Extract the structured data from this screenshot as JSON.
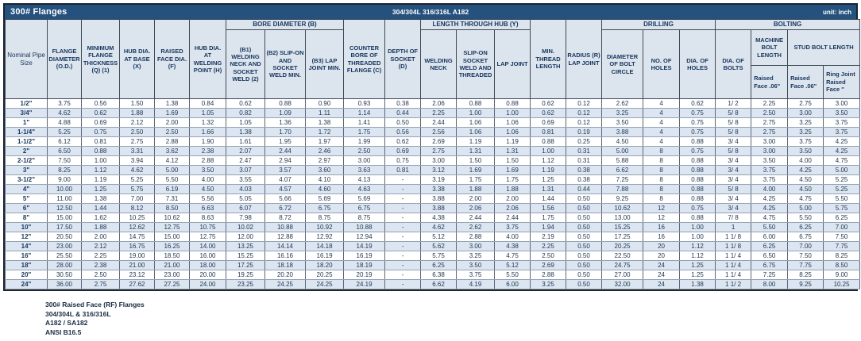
{
  "title_bar": {
    "title": "300# Flanges",
    "material": "304/304L 316/316L A182",
    "unit": "unit: inch"
  },
  "header": {
    "groups": {
      "bore": "BORE DIAMETER (B)",
      "length_hub": "LENGTH THROUGH HUB (Y)",
      "drilling": "DRILLING",
      "bolting": "BOLTING"
    },
    "columns": {
      "nps": "Nominal Pipe Size",
      "od": "FLANGE DIAMETER (O.D.)",
      "thickness": "MINIMUM FLANGE THICKNESS (Q) (1)",
      "hub_base": "HUB DIA. AT BASE (X)",
      "raised_face": "RAISED FACE DIA. (F)",
      "hub_weld": "HUB DIA. AT WELDING POINT (H)",
      "b1": "(B1) WELDING NECK AND SOCKET WELD (2)",
      "b2": "(B2) SLIP-ON AND SOCKET WELD MIN.",
      "b3": "(B3) LAP JOINT MIN.",
      "counter_bore": "COUNTER BORE OF THREADED FLANGE (C)",
      "socket_depth": "DEPTH OF SOCKET (D)",
      "welding_neck": "WELDING NECK",
      "slip_on": "SLIP-ON SOCKET WELD AND THREADED",
      "lap_joint": "LAP JOINT",
      "min_thread": "MIN. THREAD LENGTH",
      "radius": "RADIUS (R) LAP JOINT",
      "bolt_circle": "DIAMETER OF BOLT CIRCLE",
      "num_holes": "NO. OF HOLES",
      "dia_holes": "DIA. OF HOLES",
      "dia_bolts": "DIA. OF BOLTS",
      "machine_bolt": "MACHINE BOLT LENGTH",
      "stud_bolt": "STUD BOLT LENGTH",
      "raised_face_mb": "Raised Face .06\"",
      "raised_face_sb": "Raised Face .06\"",
      "ring_joint": "Ring Joint Raised Face \""
    }
  },
  "table": {
    "rows": [
      [
        "1/2\"",
        "3.75",
        "0.56",
        "1.50",
        "1.38",
        "0.84",
        "0.62",
        "0.88",
        "0.90",
        "0.93",
        "0.38",
        "2.06",
        "0.88",
        "0.88",
        "0.62",
        "0.12",
        "2.62",
        "4",
        "0.62",
        "1/ 2",
        "2.25",
        "2.75",
        "3.00"
      ],
      [
        "3/4\"",
        "4.62",
        "0.62",
        "1.88",
        "1.69",
        "1.05",
        "0.82",
        "1.09",
        "1.11",
        "1.14",
        "0.44",
        "2.25",
        "1.00",
        "1.00",
        "0.62",
        "0.12",
        "3.25",
        "4",
        "0.75",
        "5/ 8",
        "2.50",
        "3.00",
        "3.50"
      ],
      [
        "1\"",
        "4.88",
        "0.69",
        "2.12",
        "2.00",
        "1.32",
        "1.05",
        "1.36",
        "1.38",
        "1.41",
        "0.50",
        "2.44",
        "1.06",
        "1.06",
        "0.69",
        "0.12",
        "3.50",
        "4",
        "0.75",
        "5/ 8",
        "2.75",
        "3.25",
        "3.75"
      ],
      [
        "1-1/4\"",
        "5.25",
        "0.75",
        "2.50",
        "2.50",
        "1.66",
        "1.38",
        "1.70",
        "1.72",
        "1.75",
        "0.56",
        "2.56",
        "1.06",
        "1.06",
        "0.81",
        "0.19",
        "3.88",
        "4",
        "0.75",
        "5/ 8",
        "2.75",
        "3.25",
        "3.75"
      ],
      [
        "1-1/2\"",
        "6.12",
        "0.81",
        "2.75",
        "2.88",
        "1.90",
        "1.61",
        "1.95",
        "1.97",
        "1.99",
        "0.62",
        "2.69",
        "1.19",
        "1.19",
        "0.88",
        "0.25",
        "4.50",
        "4",
        "0.88",
        "3/ 4",
        "3.00",
        "3.75",
        "4.25"
      ],
      [
        "2\"",
        "6.50",
        "0.88",
        "3.31",
        "3.62",
        "2.38",
        "2.07",
        "2.44",
        "2.46",
        "2.50",
        "0.69",
        "2.75",
        "1.31",
        "1.31",
        "1.00",
        "0.31",
        "5.00",
        "8",
        "0.75",
        "5/ 8",
        "3.00",
        "3.50",
        "4.25"
      ],
      [
        "2-1/2\"",
        "7.50",
        "1.00",
        "3.94",
        "4.12",
        "2.88",
        "2.47",
        "2.94",
        "2.97",
        "3.00",
        "0.75",
        "3.00",
        "1.50",
        "1.50",
        "1.12",
        "0.31",
        "5.88",
        "8",
        "0.88",
        "3/ 4",
        "3.50",
        "4.00",
        "4.75"
      ],
      [
        "3\"",
        "8.25",
        "1.12",
        "4.62",
        "5.00",
        "3.50",
        "3.07",
        "3.57",
        "3.60",
        "3.63",
        "0.81",
        "3.12",
        "1.69",
        "1.69",
        "1.19",
        "0.38",
        "6.62",
        "8",
        "0.88",
        "3/ 4",
        "3.75",
        "4.25",
        "5.00"
      ],
      [
        "3-1/2\"",
        "9.00",
        "1.19",
        "5.25",
        "5.50",
        "4.00",
        "3.55",
        "4.07",
        "4.10",
        "4.13",
        "-",
        "3.19",
        "1.75",
        "1.75",
        "1.25",
        "0.38",
        "7.25",
        "8",
        "0.88",
        "3/ 4",
        "3.75",
        "4.50",
        "5.25"
      ],
      [
        "4\"",
        "10.00",
        "1.25",
        "5.75",
        "6.19",
        "4.50",
        "4.03",
        "4.57",
        "4.60",
        "4.63",
        "-",
        "3.38",
        "1.88",
        "1.88",
        "1.31",
        "0.44",
        "7.88",
        "8",
        "0.88",
        "5/ 8",
        "4.00",
        "4.50",
        "5.25"
      ],
      [
        "5\"",
        "11.00",
        "1.38",
        "7.00",
        "7.31",
        "5.56",
        "5.05",
        "5.66",
        "5.69",
        "5.69",
        "-",
        "3.88",
        "2.00",
        "2.00",
        "1.44",
        "0.50",
        "9.25",
        "8",
        "0.88",
        "3/ 4",
        "4.25",
        "4.75",
        "5.50"
      ],
      [
        "6\"",
        "12.50",
        "1.44",
        "8.12",
        "8.50",
        "6.63",
        "6.07",
        "6.72",
        "6.75",
        "6.75",
        "-",
        "3.88",
        "2.06",
        "2.06",
        "1.56",
        "0.50",
        "10.62",
        "12",
        "0.75",
        "3/ 4",
        "4.25",
        "5.00",
        "5.75"
      ],
      [
        "8\"",
        "15.00",
        "1.62",
        "10.25",
        "10.62",
        "8.63",
        "7.98",
        "8.72",
        "8.75",
        "8.75",
        "-",
        "4.38",
        "2.44",
        "2.44",
        "1.75",
        "0.50",
        "13.00",
        "12",
        "0.88",
        "7/ 8",
        "4.75",
        "5.50",
        "6.25"
      ],
      [
        "10\"",
        "17.50",
        "1.88",
        "12.62",
        "12.75",
        "10.75",
        "10.02",
        "10.88",
        "10.92",
        "10.88",
        "-",
        "4.62",
        "2.62",
        "3.75",
        "1.94",
        "0.50",
        "15.25",
        "16",
        "1.00",
        "1",
        "5.50",
        "6.25",
        "7.00"
      ],
      [
        "12\"",
        "20.50",
        "2.00",
        "14.75",
        "15.00",
        "12.75",
        "12.00",
        "12.88",
        "12.92",
        "12.94",
        "-",
        "5.12",
        "2.88",
        "4.00",
        "2.19",
        "0.50",
        "17.25",
        "16",
        "1.00",
        "1 1/ 8",
        "6.00",
        "6.75",
        "7.50"
      ],
      [
        "14\"",
        "23.00",
        "2.12",
        "16.75",
        "16.25",
        "14.00",
        "13.25",
        "14.14",
        "14.18",
        "14.19",
        "-",
        "5.62",
        "3.00",
        "4.38",
        "2.25",
        "0.50",
        "20.25",
        "20",
        "1.12",
        "1 1/ 8",
        "6.25",
        "7.00",
        "7.75"
      ],
      [
        "16\"",
        "25.50",
        "2.25",
        "19.00",
        "18.50",
        "16.00",
        "15.25",
        "16.16",
        "16.19",
        "16.19",
        "-",
        "5.75",
        "3.25",
        "4.75",
        "2.50",
        "0.50",
        "22.50",
        "20",
        "1.12",
        "1 1/ 4",
        "6.50",
        "7.50",
        "8.25"
      ],
      [
        "18\"",
        "28.00",
        "2.38",
        "21.00",
        "21.00",
        "18.00",
        "17.25",
        "18.18",
        "18.20",
        "18.19",
        "-",
        "6.25",
        "3.50",
        "5.12",
        "2.69",
        "0.50",
        "24.75",
        "24",
        "1.25",
        "1 1/ 4",
        "6.75",
        "7.75",
        "8.50"
      ],
      [
        "20\"",
        "30.50",
        "2.50",
        "23.12",
        "23.00",
        "20.00",
        "19.25",
        "20.20",
        "20.25",
        "20.19",
        "-",
        "6.38",
        "3.75",
        "5.50",
        "2.88",
        "0.50",
        "27.00",
        "24",
        "1.25",
        "1 1/ 4",
        "7.25",
        "8.25",
        "9.00"
      ],
      [
        "24\"",
        "36.00",
        "2.75",
        "27.62",
        "27.25",
        "24.00",
        "23.25",
        "24.25",
        "24.25",
        "24.19",
        "-",
        "6.62",
        "4.19",
        "6.00",
        "3.25",
        "0.50",
        "32.00",
        "24",
        "1.38",
        "1 1/ 2",
        "8.00",
        "9.25",
        "10.25"
      ]
    ]
  },
  "footer": {
    "lines": [
      "300# Raised Face (RF) Flanges",
      "304/304L & 316/316L",
      "A182 / SA182",
      "ANSI B16.5"
    ]
  },
  "colors": {
    "title_bar_bg": "#24517e",
    "header_bg": "#dce4ee",
    "row_stripe": "#dce6f2",
    "navy_text": "#17365d"
  }
}
